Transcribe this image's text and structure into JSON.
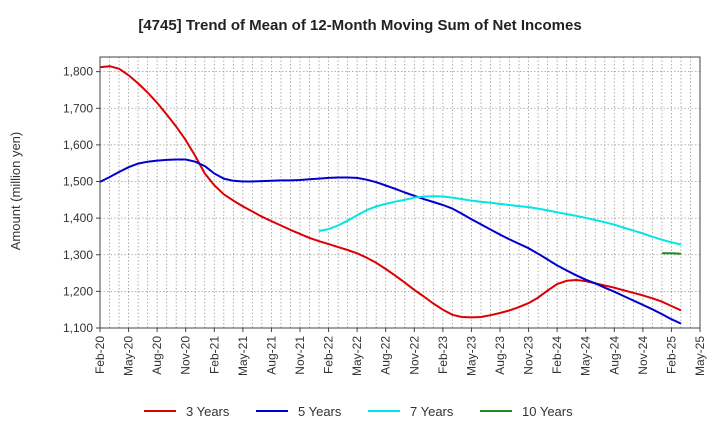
{
  "chart_data": {
    "type": "line",
    "title": "[4745]  Trend of Mean of 12-Month Moving Sum of Net Incomes",
    "xlabel": "",
    "ylabel": "Amount (million yen)",
    "ylim": [
      1100,
      1840
    ],
    "yticks": [
      1100,
      1200,
      1300,
      1400,
      1500,
      1600,
      1700,
      1800
    ],
    "ytick_labels": [
      "1,100",
      "1,200",
      "1,300",
      "1,400",
      "1,500",
      "1,600",
      "1,700",
      "1,800"
    ],
    "x_range": [
      "2020-02",
      "2025-05"
    ],
    "xticks": [
      "2020-02",
      "2020-05",
      "2020-08",
      "2020-11",
      "2021-02",
      "2021-05",
      "2021-08",
      "2021-11",
      "2022-02",
      "2022-05",
      "2022-08",
      "2022-11",
      "2023-02",
      "2023-05",
      "2023-08",
      "2023-11",
      "2024-02",
      "2024-05",
      "2024-08",
      "2024-11",
      "2025-02",
      "2025-05"
    ],
    "xtick_labels": [
      "Feb-20",
      "May-20",
      "Aug-20",
      "Nov-20",
      "Feb-21",
      "May-21",
      "Aug-21",
      "Nov-21",
      "Feb-22",
      "May-22",
      "Aug-22",
      "Nov-22",
      "Feb-23",
      "May-23",
      "Aug-23",
      "Nov-23",
      "Feb-24",
      "May-24",
      "Aug-24",
      "Nov-24",
      "Feb-25",
      "May-25"
    ],
    "grid": true,
    "legend_position": "bottom",
    "series": [
      {
        "name": "3 Years",
        "color": "#dd0000",
        "points": [
          [
            "2020-02",
            1812
          ],
          [
            "2020-03",
            1815
          ],
          [
            "2020-04",
            1808
          ],
          [
            "2020-05",
            1790
          ],
          [
            "2020-06",
            1768
          ],
          [
            "2020-07",
            1743
          ],
          [
            "2020-08",
            1715
          ],
          [
            "2020-09",
            1683
          ],
          [
            "2020-10",
            1650
          ],
          [
            "2020-11",
            1613
          ],
          [
            "2020-12",
            1570
          ],
          [
            "2021-01",
            1522
          ],
          [
            "2021-02",
            1490
          ],
          [
            "2021-03",
            1465
          ],
          [
            "2021-04",
            1448
          ],
          [
            "2021-05",
            1432
          ],
          [
            "2021-06",
            1418
          ],
          [
            "2021-07",
            1404
          ],
          [
            "2021-08",
            1392
          ],
          [
            "2021-09",
            1380
          ],
          [
            "2021-10",
            1368
          ],
          [
            "2021-11",
            1357
          ],
          [
            "2021-12",
            1346
          ],
          [
            "2022-01",
            1337
          ],
          [
            "2022-02",
            1329
          ],
          [
            "2022-03",
            1321
          ],
          [
            "2022-04",
            1313
          ],
          [
            "2022-05",
            1304
          ],
          [
            "2022-06",
            1292
          ],
          [
            "2022-07",
            1278
          ],
          [
            "2022-08",
            1261
          ],
          [
            "2022-09",
            1243
          ],
          [
            "2022-10",
            1224
          ],
          [
            "2022-11",
            1204
          ],
          [
            "2022-12",
            1186
          ],
          [
            "2023-01",
            1167
          ],
          [
            "2023-02",
            1150
          ],
          [
            "2023-03",
            1136
          ],
          [
            "2023-04",
            1130
          ],
          [
            "2023-05",
            1129
          ],
          [
            "2023-06",
            1130
          ],
          [
            "2023-07",
            1135
          ],
          [
            "2023-08",
            1141
          ],
          [
            "2023-09",
            1148
          ],
          [
            "2023-10",
            1157
          ],
          [
            "2023-11",
            1168
          ],
          [
            "2023-12",
            1183
          ],
          [
            "2024-01",
            1202
          ],
          [
            "2024-02",
            1220
          ],
          [
            "2024-03",
            1229
          ],
          [
            "2024-04",
            1231
          ],
          [
            "2024-05",
            1228
          ],
          [
            "2024-06",
            1222
          ],
          [
            "2024-07",
            1216
          ],
          [
            "2024-08",
            1210
          ],
          [
            "2024-09",
            1203
          ],
          [
            "2024-10",
            1196
          ],
          [
            "2024-11",
            1189
          ],
          [
            "2024-12",
            1181
          ],
          [
            "2025-01",
            1172
          ],
          [
            "2025-02",
            1160
          ],
          [
            "2025-03",
            1148
          ]
        ]
      },
      {
        "name": "5 Years",
        "color": "#0000cc",
        "points": [
          [
            "2020-02",
            1499
          ],
          [
            "2020-03",
            1512
          ],
          [
            "2020-04",
            1526
          ],
          [
            "2020-05",
            1539
          ],
          [
            "2020-06",
            1549
          ],
          [
            "2020-07",
            1554
          ],
          [
            "2020-08",
            1557
          ],
          [
            "2020-09",
            1559
          ],
          [
            "2020-10",
            1560
          ],
          [
            "2020-11",
            1560
          ],
          [
            "2020-12",
            1554
          ],
          [
            "2021-01",
            1542
          ],
          [
            "2021-02",
            1522
          ],
          [
            "2021-03",
            1508
          ],
          [
            "2021-04",
            1502
          ],
          [
            "2021-05",
            1500
          ],
          [
            "2021-06",
            1500
          ],
          [
            "2021-07",
            1501
          ],
          [
            "2021-08",
            1502
          ],
          [
            "2021-09",
            1503
          ],
          [
            "2021-10",
            1503
          ],
          [
            "2021-11",
            1504
          ],
          [
            "2021-12",
            1506
          ],
          [
            "2022-01",
            1508
          ],
          [
            "2022-02",
            1510
          ],
          [
            "2022-03",
            1511
          ],
          [
            "2022-04",
            1511
          ],
          [
            "2022-05",
            1510
          ],
          [
            "2022-06",
            1505
          ],
          [
            "2022-07",
            1498
          ],
          [
            "2022-08",
            1489
          ],
          [
            "2022-09",
            1480
          ],
          [
            "2022-10",
            1470
          ],
          [
            "2022-11",
            1461
          ],
          [
            "2022-12",
            1452
          ],
          [
            "2023-01",
            1444
          ],
          [
            "2023-02",
            1436
          ],
          [
            "2023-03",
            1426
          ],
          [
            "2023-04",
            1412
          ],
          [
            "2023-05",
            1397
          ],
          [
            "2023-06",
            1383
          ],
          [
            "2023-07",
            1369
          ],
          [
            "2023-08",
            1355
          ],
          [
            "2023-09",
            1342
          ],
          [
            "2023-10",
            1330
          ],
          [
            "2023-11",
            1318
          ],
          [
            "2023-12",
            1303
          ],
          [
            "2024-01",
            1287
          ],
          [
            "2024-02",
            1271
          ],
          [
            "2024-03",
            1257
          ],
          [
            "2024-04",
            1244
          ],
          [
            "2024-05",
            1232
          ],
          [
            "2024-06",
            1222
          ],
          [
            "2024-07",
            1210
          ],
          [
            "2024-08",
            1199
          ],
          [
            "2024-09",
            1187
          ],
          [
            "2024-10",
            1175
          ],
          [
            "2024-11",
            1163
          ],
          [
            "2024-12",
            1151
          ],
          [
            "2025-01",
            1138
          ],
          [
            "2025-02",
            1124
          ],
          [
            "2025-03",
            1112
          ]
        ]
      },
      {
        "name": "7 Years",
        "color": "#00e5e5",
        "points": [
          [
            "2022-01",
            1365
          ],
          [
            "2022-02",
            1370
          ],
          [
            "2022-03",
            1380
          ],
          [
            "2022-04",
            1393
          ],
          [
            "2022-05",
            1408
          ],
          [
            "2022-06",
            1422
          ],
          [
            "2022-07",
            1432
          ],
          [
            "2022-08",
            1439
          ],
          [
            "2022-09",
            1445
          ],
          [
            "2022-10",
            1450
          ],
          [
            "2022-11",
            1456
          ],
          [
            "2022-12",
            1459
          ],
          [
            "2023-01",
            1460
          ],
          [
            "2023-02",
            1459
          ],
          [
            "2023-03",
            1456
          ],
          [
            "2023-04",
            1452
          ],
          [
            "2023-05",
            1448
          ],
          [
            "2023-06",
            1445
          ],
          [
            "2023-07",
            1442
          ],
          [
            "2023-08",
            1439
          ],
          [
            "2023-09",
            1436
          ],
          [
            "2023-10",
            1433
          ],
          [
            "2023-11",
            1430
          ],
          [
            "2023-12",
            1426
          ],
          [
            "2024-01",
            1421
          ],
          [
            "2024-02",
            1416
          ],
          [
            "2024-03",
            1411
          ],
          [
            "2024-04",
            1406
          ],
          [
            "2024-05",
            1401
          ],
          [
            "2024-06",
            1395
          ],
          [
            "2024-07",
            1389
          ],
          [
            "2024-08",
            1382
          ],
          [
            "2024-09",
            1374
          ],
          [
            "2024-10",
            1366
          ],
          [
            "2024-11",
            1358
          ],
          [
            "2024-12",
            1349
          ],
          [
            "2025-01",
            1341
          ],
          [
            "2025-02",
            1334
          ],
          [
            "2025-03",
            1328
          ]
        ]
      },
      {
        "name": "10 Years",
        "color": "#228822",
        "points": [
          [
            "2025-01",
            1304
          ],
          [
            "2025-02",
            1304
          ],
          [
            "2025-03",
            1303
          ]
        ]
      }
    ]
  }
}
